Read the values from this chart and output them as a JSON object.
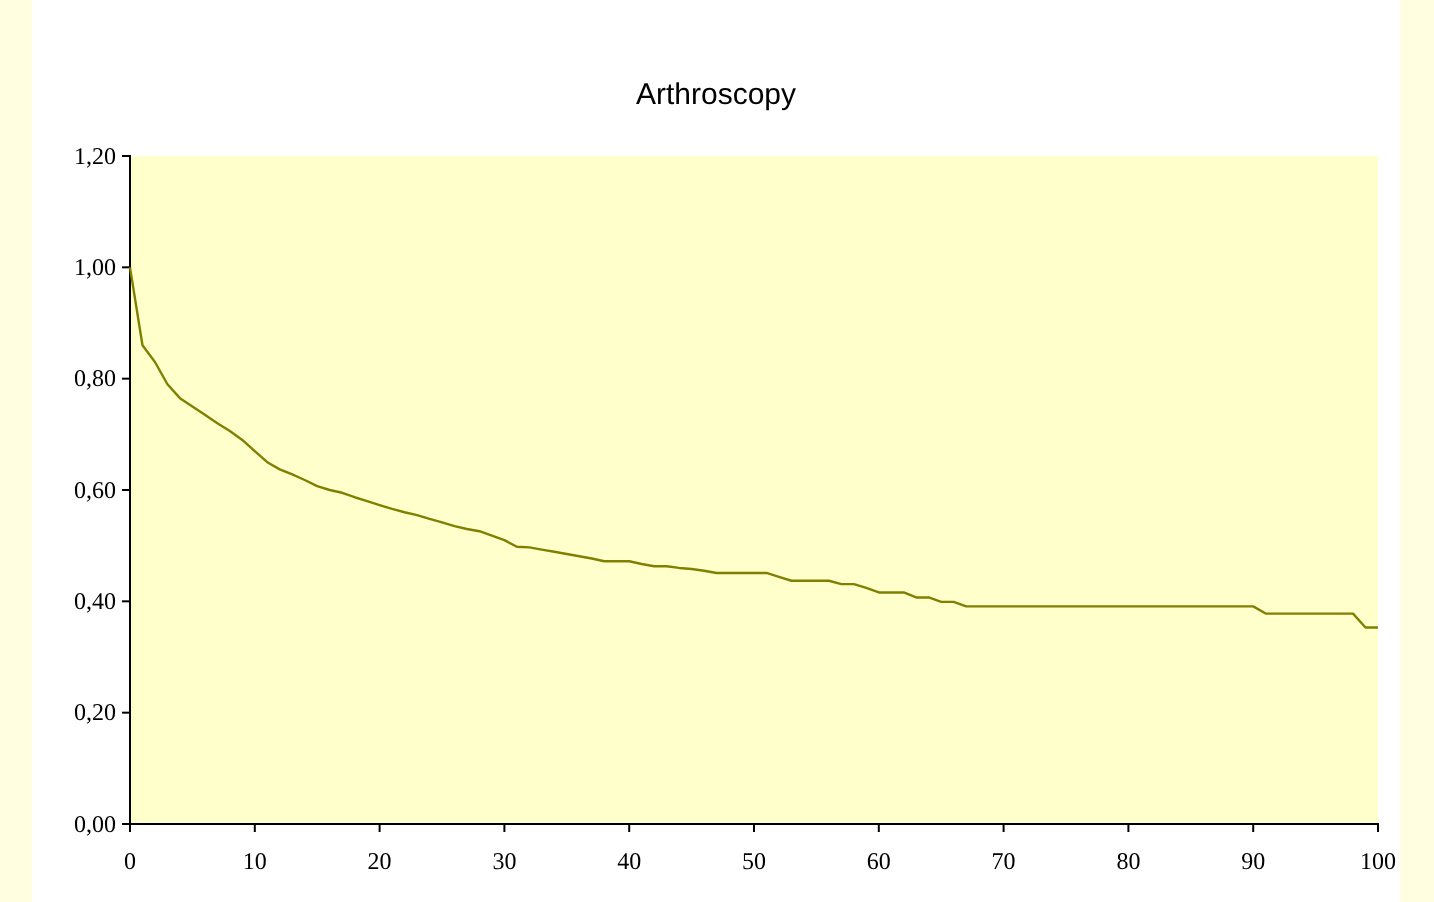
{
  "chart_data": {
    "type": "line",
    "title": "Arthroscopy",
    "x": [
      0,
      1,
      2,
      3,
      4,
      5,
      6,
      7,
      8,
      9,
      10,
      11,
      12,
      13,
      14,
      15,
      16,
      17,
      18,
      19,
      20,
      21,
      22,
      23,
      24,
      25,
      26,
      27,
      28,
      29,
      30,
      31,
      32,
      33,
      34,
      35,
      36,
      37,
      38,
      39,
      40,
      41,
      42,
      43,
      44,
      45,
      46,
      47,
      48,
      49,
      50,
      51,
      52,
      53,
      54,
      55,
      56,
      57,
      58,
      59,
      60,
      61,
      62,
      63,
      64,
      65,
      66,
      67,
      70,
      75,
      80,
      85,
      90,
      91,
      95,
      98,
      99,
      100
    ],
    "series": [
      {
        "color": "#808000",
        "values": [
          1.0,
          0.86,
          0.83,
          0.79,
          0.765,
          0.75,
          0.735,
          0.72,
          0.706,
          0.69,
          0.67,
          0.65,
          0.637,
          0.628,
          0.618,
          0.607,
          0.6,
          0.595,
          0.587,
          0.58,
          0.573,
          0.566,
          0.56,
          0.555,
          0.548,
          0.542,
          0.535,
          0.53,
          0.526,
          0.518,
          0.51,
          0.498,
          0.497,
          0.493,
          0.489,
          0.485,
          0.481,
          0.477,
          0.472,
          0.472,
          0.472,
          0.467,
          0.463,
          0.463,
          0.46,
          0.458,
          0.455,
          0.451,
          0.451,
          0.451,
          0.451,
          0.451,
          0.444,
          0.437,
          0.437,
          0.437,
          0.437,
          0.431,
          0.431,
          0.424,
          0.416,
          0.416,
          0.416,
          0.407,
          0.407,
          0.399,
          0.399,
          0.391,
          0.391,
          0.391,
          0.391,
          0.391,
          0.391,
          0.378,
          0.378,
          0.378,
          0.353,
          0.353
        ]
      }
    ],
    "xlim": [
      0,
      100
    ],
    "xticks": [
      0,
      10,
      20,
      30,
      40,
      50,
      60,
      70,
      80,
      90,
      100
    ],
    "ylim": [
      0,
      1.2
    ],
    "yticks": [
      {
        "value": 0,
        "label": "0,00"
      },
      {
        "value": 0.2,
        "label": "0,20"
      },
      {
        "value": 0.4,
        "label": "0,40"
      },
      {
        "value": 0.6,
        "label": "0,60"
      },
      {
        "value": 0.8,
        "label": "0,80"
      },
      {
        "value": 1.0,
        "label": "1,00"
      },
      {
        "value": 1.2,
        "label": "1,20"
      }
    ],
    "grid": false
  }
}
